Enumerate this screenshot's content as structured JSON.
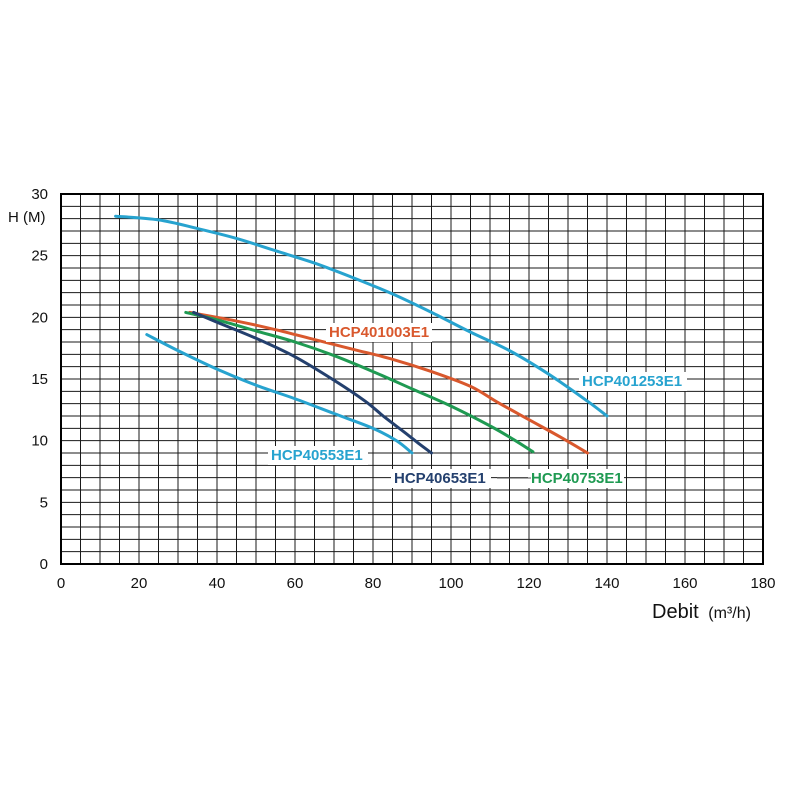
{
  "chart_data": {
    "type": "line",
    "ylabel": "H (M)",
    "xlabel_main": "Debit",
    "xlabel_unit": "(m³/h)",
    "xlim": [
      0,
      180
    ],
    "ylim": [
      0,
      30
    ],
    "x_ticks": [
      0,
      20,
      40,
      60,
      80,
      100,
      120,
      140,
      160,
      180
    ],
    "y_ticks": [
      0,
      5,
      10,
      15,
      20,
      25,
      30
    ],
    "grid": true,
    "series": [
      {
        "name": "HCP401253E1",
        "color": "#27a3cf",
        "x": [
          14,
          25,
          35,
          45,
          55,
          65,
          75,
          85,
          95,
          105,
          115,
          125,
          135,
          140
        ],
        "y": [
          28.2,
          27.9,
          27.2,
          26.4,
          25.4,
          24.4,
          23.2,
          21.9,
          20.4,
          18.8,
          17.3,
          15.4,
          13.2,
          12.0
        ]
      },
      {
        "name": "HCP401003E1",
        "color": "#d9582d",
        "x": [
          33,
          45,
          55,
          65,
          75,
          85,
          95,
          105,
          112,
          120,
          128,
          135
        ],
        "y": [
          20.4,
          19.7,
          19.0,
          18.2,
          17.4,
          16.6,
          15.6,
          14.4,
          13.1,
          11.7,
          10.3,
          9.0
        ]
      },
      {
        "name": "HCP40753E1",
        "color": "#1f9a52",
        "x": [
          32,
          40,
          50,
          60,
          70,
          80,
          90,
          100,
          110,
          116,
          121
        ],
        "y": [
          20.4,
          19.8,
          18.9,
          18.0,
          16.9,
          15.6,
          14.2,
          12.8,
          11.2,
          10.1,
          9.1
        ]
      },
      {
        "name": "HCP40653E1",
        "color": "#24406e",
        "x": [
          34,
          40,
          50,
          60,
          70,
          78,
          83,
          88,
          92,
          95
        ],
        "y": [
          20.4,
          19.6,
          18.3,
          16.8,
          14.9,
          13.2,
          11.9,
          10.7,
          9.7,
          9.0
        ]
      },
      {
        "name": "HCP40553E1",
        "color": "#27a3cf",
        "x": [
          22,
          30,
          40,
          50,
          60,
          70,
          80,
          86,
          90
        ],
        "y": [
          18.6,
          17.3,
          15.8,
          14.5,
          13.4,
          12.2,
          11.0,
          10.0,
          9.0
        ]
      }
    ]
  }
}
